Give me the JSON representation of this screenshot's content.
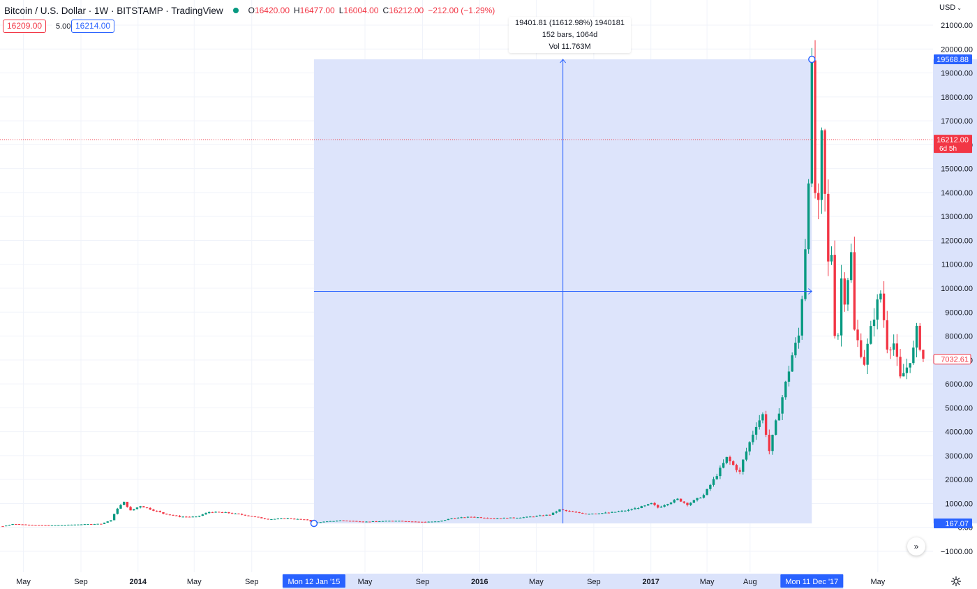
{
  "header": {
    "symbol": "Bitcoin / U.S. Dollar · 1W · BITSTAMP · TradingView",
    "ohlc": [
      {
        "key": "O",
        "value": "16420.00"
      },
      {
        "key": "H",
        "value": "16477.00"
      },
      {
        "key": "L",
        "value": "16004.00"
      },
      {
        "key": "C",
        "value": "16212.00"
      }
    ],
    "change": "−212.00 (−1.29%)",
    "sell_price": "16209.00",
    "spread": "5.00",
    "buy_price": "16214.00",
    "currency": "USD"
  },
  "measure": {
    "line1": "19401.81 (11612.98%) 1940181",
    "line2": "152 bars, 1064d",
    "line3": "Vol 11.763M"
  },
  "price_axis": {
    "ticks": [
      "21000.00",
      "20000.00",
      "19000.00",
      "18000.00",
      "17000.00",
      "16000.00",
      "15000.00",
      "14000.00",
      "13000.00",
      "12000.00",
      "11000.00",
      "10000.00",
      "9000.00",
      "8000.00",
      "7000.00",
      "6000.00",
      "5000.00",
      "4000.00",
      "3000.00",
      "2000.00",
      "1000.00",
      "0.00",
      "−1000.00"
    ],
    "labels": [
      {
        "text": "19568.88",
        "value": 19568.88,
        "color": "#2962ff"
      },
      {
        "text": "16212.00",
        "sub": "6d 5h",
        "value": 16212,
        "color": "#f23645"
      },
      {
        "text": "7032.61",
        "value": 7032.61,
        "color": "#f23645",
        "outline": true
      },
      {
        "text": "167.07",
        "value": 167.07,
        "color": "#2962ff"
      }
    ]
  },
  "time_axis": {
    "labels": [
      {
        "text": "May",
        "date": "2013-05-01",
        "bold": false
      },
      {
        "text": "Sep",
        "date": "2013-09-01",
        "bold": false
      },
      {
        "text": "2014",
        "date": "2014-01-01",
        "bold": true
      },
      {
        "text": "May",
        "date": "2014-05-01",
        "bold": false
      },
      {
        "text": "Sep",
        "date": "2014-09-01",
        "bold": false
      },
      {
        "text": "May",
        "date": "2015-05-01",
        "bold": false
      },
      {
        "text": "Sep",
        "date": "2015-09-01",
        "bold": false
      },
      {
        "text": "2016",
        "date": "2016-01-01",
        "bold": true
      },
      {
        "text": "May",
        "date": "2016-05-01",
        "bold": false
      },
      {
        "text": "Sep",
        "date": "2016-09-01",
        "bold": false
      },
      {
        "text": "2017",
        "date": "2017-01-01",
        "bold": true
      },
      {
        "text": "May",
        "date": "2017-05-01",
        "bold": false
      },
      {
        "text": "Aug",
        "date": "2017-08-01",
        "bold": false
      },
      {
        "text": "May",
        "date": "2018-05-01",
        "bold": false
      }
    ],
    "measure_start": {
      "text": "Mon 12 Jan '15",
      "date": "2015-01-12"
    },
    "measure_end": {
      "text": "Mon 11 Dec '17",
      "date": "2017-12-11"
    }
  },
  "chart_data": {
    "type": "candlestick",
    "interval": "1W",
    "y_range": [
      -1000,
      21000
    ],
    "x_range": [
      "2013-03-12",
      "2018-08-27"
    ],
    "grid": true,
    "last_price": 16212,
    "measure": {
      "from_date": "2015-01-12",
      "to_date": "2017-12-11",
      "from_price": 167.07,
      "to_price": 19568.88
    },
    "colors": {
      "up": "#089981",
      "down": "#f23645",
      "measure_fill": "#dbe3fb",
      "measure_line": "#2962ff",
      "axis_highlight": "#dbe3fb"
    },
    "anchors": [
      {
        "date": "2013-03-18",
        "close": 47
      },
      {
        "date": "2013-04-08",
        "close": 140
      },
      {
        "date": "2013-05-06",
        "close": 115
      },
      {
        "date": "2013-07-01",
        "close": 88
      },
      {
        "date": "2013-09-02",
        "close": 125
      },
      {
        "date": "2013-10-14",
        "close": 150
      },
      {
        "date": "2013-11-04",
        "close": 300
      },
      {
        "date": "2013-11-18",
        "close": 800
      },
      {
        "date": "2013-12-02",
        "close": 1050
      },
      {
        "date": "2013-12-16",
        "close": 700
      },
      {
        "date": "2014-01-06",
        "close": 900
      },
      {
        "date": "2014-02-24",
        "close": 580
      },
      {
        "date": "2014-03-31",
        "close": 450
      },
      {
        "date": "2014-05-05",
        "close": 440
      },
      {
        "date": "2014-06-02",
        "close": 640
      },
      {
        "date": "2014-07-07",
        "close": 620
      },
      {
        "date": "2014-08-18",
        "close": 510
      },
      {
        "date": "2014-10-06",
        "close": 340
      },
      {
        "date": "2014-11-17",
        "close": 380
      },
      {
        "date": "2014-12-29",
        "close": 310
      },
      {
        "date": "2015-01-12",
        "close": 200
      },
      {
        "date": "2015-03-09",
        "close": 290
      },
      {
        "date": "2015-05-04",
        "close": 238
      },
      {
        "date": "2015-07-06",
        "close": 280
      },
      {
        "date": "2015-08-24",
        "close": 230
      },
      {
        "date": "2015-10-05",
        "close": 245
      },
      {
        "date": "2015-11-02",
        "close": 380
      },
      {
        "date": "2015-12-14",
        "close": 440
      },
      {
        "date": "2016-02-01",
        "close": 375
      },
      {
        "date": "2016-04-04",
        "close": 420
      },
      {
        "date": "2016-05-30",
        "close": 530
      },
      {
        "date": "2016-06-20",
        "close": 740
      },
      {
        "date": "2016-07-11",
        "close": 660
      },
      {
        "date": "2016-08-15",
        "close": 570
      },
      {
        "date": "2016-10-03",
        "close": 610
      },
      {
        "date": "2016-11-14",
        "close": 720
      },
      {
        "date": "2016-12-19",
        "close": 900
      },
      {
        "date": "2017-01-02",
        "close": 1000
      },
      {
        "date": "2017-01-16",
        "close": 830
      },
      {
        "date": "2017-02-27",
        "close": 1180
      },
      {
        "date": "2017-03-20",
        "close": 960
      },
      {
        "date": "2017-04-24",
        "close": 1350
      },
      {
        "date": "2017-05-22",
        "close": 2200
      },
      {
        "date": "2017-06-12",
        "close": 2900
      },
      {
        "date": "2017-07-10",
        "close": 2300
      },
      {
        "date": "2017-07-17",
        "close": 2800
      },
      {
        "date": "2017-08-14",
        "close": 4300
      },
      {
        "date": "2017-08-28",
        "close": 4700
      },
      {
        "date": "2017-09-11",
        "close": 3200
      },
      {
        "date": "2017-09-25",
        "close": 4350
      },
      {
        "date": "2017-10-16",
        "close": 6000
      },
      {
        "date": "2017-10-30",
        "close": 7200
      },
      {
        "date": "2017-11-13",
        "close": 8000
      },
      {
        "date": "2017-11-20",
        "close": 9700
      },
      {
        "date": "2017-11-27",
        "close": 11800
      },
      {
        "date": "2017-12-04",
        "close": 14800
      },
      {
        "date": "2017-12-11",
        "close": 19000
      },
      {
        "date": "2017-12-18",
        "close": 14000
      },
      {
        "date": "2017-12-25",
        "close": 13300
      },
      {
        "date": "2018-01-01",
        "close": 16200
      },
      {
        "date": "2018-01-08",
        "close": 13800
      },
      {
        "date": "2018-01-15",
        "close": 11000
      },
      {
        "date": "2018-01-22",
        "close": 11500
      },
      {
        "date": "2018-01-29",
        "close": 8200
      },
      {
        "date": "2018-02-05",
        "close": 8100
      },
      {
        "date": "2018-02-12",
        "close": 10400
      },
      {
        "date": "2018-02-19",
        "close": 9600
      },
      {
        "date": "2018-03-05",
        "close": 11400
      },
      {
        "date": "2018-03-12",
        "close": 8200
      },
      {
        "date": "2018-04-02",
        "close": 6900
      },
      {
        "date": "2018-04-23",
        "close": 8900
      },
      {
        "date": "2018-05-07",
        "close": 9800
      },
      {
        "date": "2018-05-21",
        "close": 7600
      },
      {
        "date": "2018-06-04",
        "close": 7700
      },
      {
        "date": "2018-06-18",
        "close": 6200
      },
      {
        "date": "2018-07-02",
        "close": 6700
      },
      {
        "date": "2018-07-16",
        "close": 7400
      },
      {
        "date": "2018-07-23",
        "close": 8200
      },
      {
        "date": "2018-08-06",
        "close": 7050
      }
    ]
  }
}
